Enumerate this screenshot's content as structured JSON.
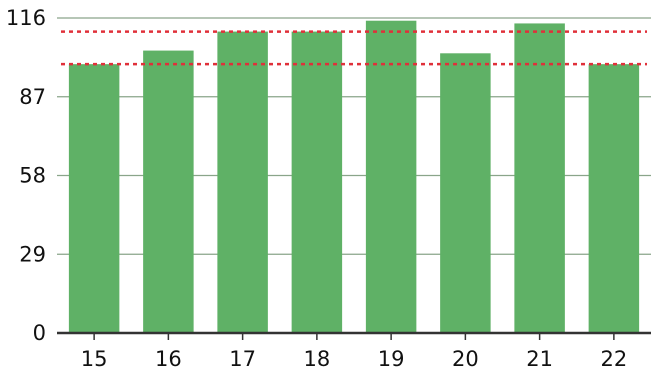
{
  "chart_data": {
    "type": "bar",
    "categories": [
      "15",
      "16",
      "17",
      "18",
      "19",
      "20",
      "21",
      "22"
    ],
    "values": [
      99,
      104,
      111,
      111,
      115,
      103,
      114,
      99
    ],
    "ylim": [
      0,
      116
    ],
    "yticks": [
      0,
      29,
      58,
      87,
      116
    ],
    "ytick_labels": [
      "0",
      "29",
      "58",
      "87",
      "116"
    ],
    "reference_lines": [
      111,
      99
    ],
    "grid": true,
    "bar_color": "#5fb166",
    "grid_color": "#8aa58a",
    "axis_color": "#333333",
    "reference_line_color": "#e0303a",
    "title": "",
    "xlabel": "",
    "ylabel": ""
  }
}
